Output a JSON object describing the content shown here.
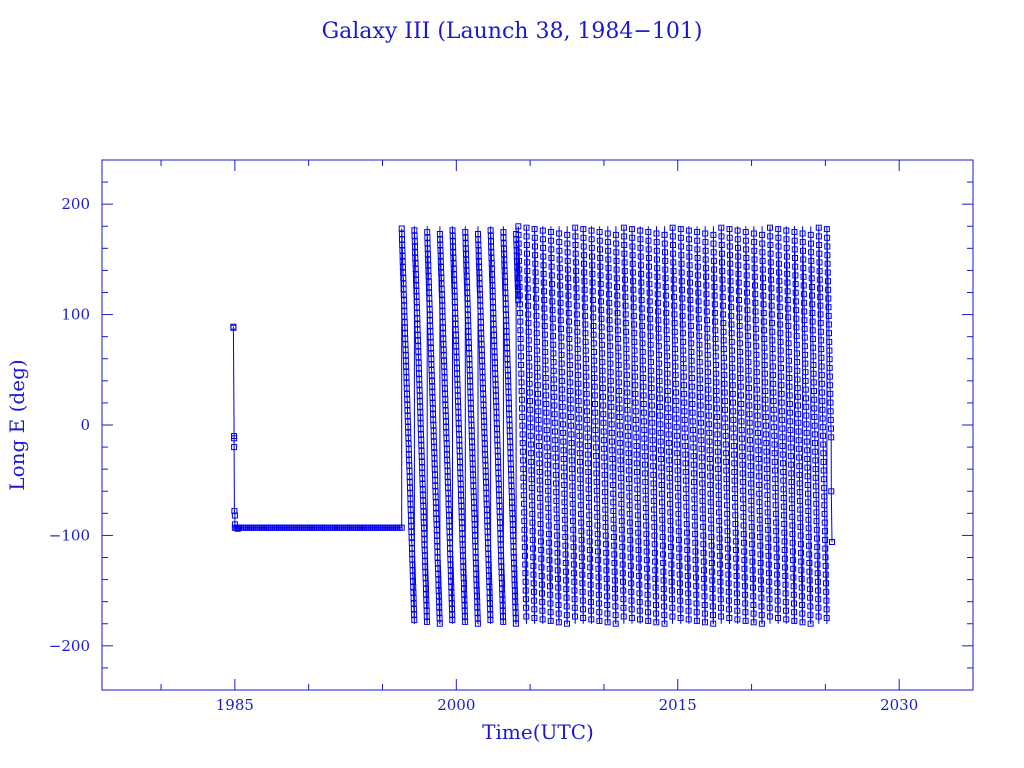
{
  "chart_data": {
    "type": "line",
    "title": "Galaxy III (Launch 38, 1984−101)",
    "xlabel": "Time(UTC)",
    "ylabel": "Long E (deg)",
    "xlim": [
      1976,
      2035
    ],
    "ylim": [
      -240,
      240
    ],
    "x_ticks": [
      1985,
      2000,
      2015,
      2030
    ],
    "x_tick_labels": [
      "1985",
      "2000",
      "2015",
      "2030"
    ],
    "y_ticks": [
      -200,
      -100,
      0,
      100,
      200
    ],
    "y_tick_labels": [
      "−200",
      "−100",
      "0",
      "100",
      "200"
    ],
    "grid": false,
    "marker": "square",
    "color": "#0000ee",
    "series": [
      {
        "segments": [
          {
            "kind": "points",
            "x": [
              1984.9,
              1984.9,
              1984.95,
              1984.95,
              1984.95,
              1984.97,
              1985.0,
              1985.0,
              1985.1,
              1985.2
            ],
            "y": [
              89,
              88,
              -10,
              -12,
              -20,
              -78,
              -82,
              -90,
              -93,
              -94
            ]
          },
          {
            "kind": "hold",
            "x_start": 1985.0,
            "x_end": 1996.3,
            "y": -93
          },
          {
            "kind": "drift",
            "x_start": 1996.3,
            "x_end": 2004.2,
            "period_years": 0.86,
            "ymin": -180,
            "ymax": 178
          },
          {
            "kind": "drift",
            "x_start": 2004.2,
            "x_end": 2025.4,
            "period_years": 0.55,
            "ymin": -180,
            "ymax": 180
          },
          {
            "kind": "points",
            "x": [
              2025.4,
              2025.45
            ],
            "y": [
              -60,
              -106
            ]
          }
        ]
      }
    ]
  }
}
